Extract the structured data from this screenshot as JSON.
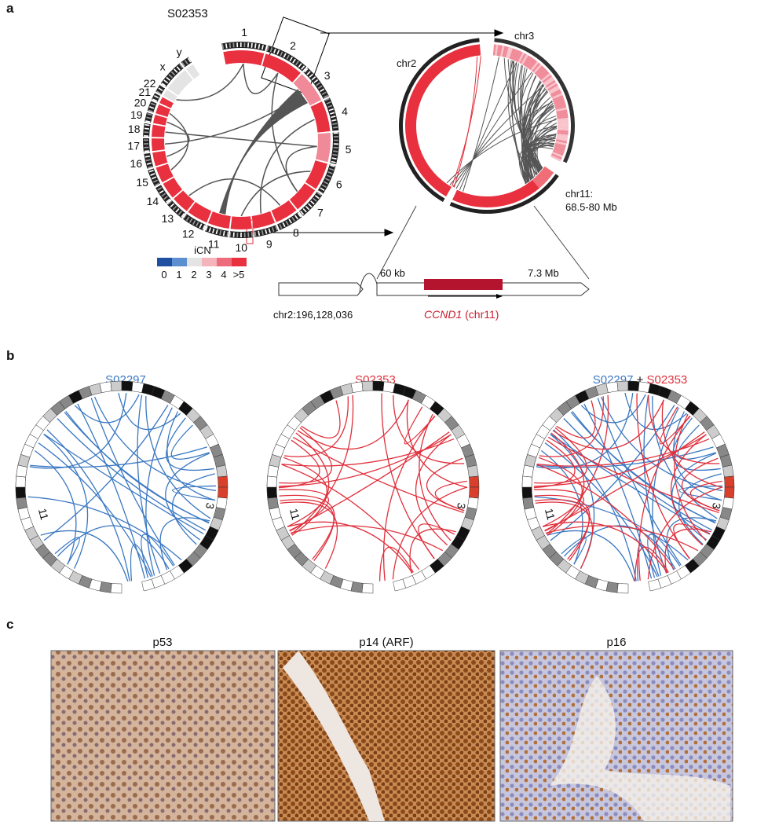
{
  "panel_a": {
    "label": "a",
    "sample": "S02353",
    "chromosome_labels": [
      "1",
      "2",
      "3",
      "4",
      "5",
      "6",
      "7",
      "8",
      "9",
      "10",
      "11",
      "12",
      "13",
      "14",
      "15",
      "16",
      "17",
      "18",
      "19",
      "20",
      "21",
      "22",
      "x",
      "y"
    ],
    "zoom_chr2": "chr2",
    "zoom_chr3": "chr3",
    "zoom_chr11": "chr11:",
    "zoom_chr11_range": "68.5-80 Mb",
    "legend_title": "iCN",
    "legend_labels": [
      "0",
      "1",
      "2",
      "3",
      "4",
      ">5"
    ],
    "track": {
      "left": "chr2:196,128,036",
      "gap": "60 kb",
      "right": "7.3 Mb",
      "gene": "CCND1",
      "gene_suffix": "(chr11)"
    }
  },
  "panel_b": {
    "label": "b",
    "circles": [
      {
        "title": "S02297"
      },
      {
        "title": "S02353"
      }
    ],
    "combined": {
      "first": "S02297",
      "joiner": "+",
      "second": "S02353"
    },
    "chr_label_3": "3",
    "chr_label_11": "11"
  },
  "panel_c": {
    "label": "c",
    "images": [
      {
        "title": "p53"
      },
      {
        "title": "p14 (ARF)"
      },
      {
        "title": "p16"
      }
    ]
  }
}
